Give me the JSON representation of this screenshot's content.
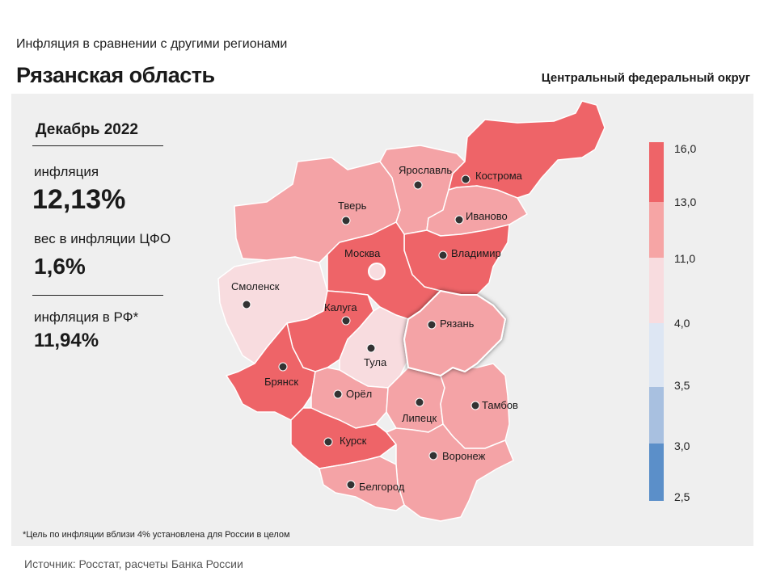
{
  "header": {
    "subtitle": "Инфляция  в сравнении  с другими  регионами",
    "region": "Рязанская область",
    "district": "Центральный федеральный округ"
  },
  "stats": {
    "period": "Декабрь 2022",
    "inflation_label": "инфляция",
    "inflation_value": "12,13%",
    "weight_label": "вес в инфляции  ЦФО",
    "weight_value": "1,6%",
    "rf_label": "инфляция  в РФ*",
    "rf_value": "11,94%"
  },
  "legend": {
    "ticks": [
      "16,0",
      "13,0",
      "11,0",
      "4,0",
      "3,5",
      "3,0",
      "2,5"
    ],
    "colors": [
      "#ee6468",
      "#f6a5a5",
      "#f8dcdf",
      "#dde6f3",
      "#a8c0e0",
      "#5b8fc9"
    ]
  },
  "map": {
    "highlighted_region": "Рязань",
    "regions": [
      {
        "name": "Смоленск",
        "fill": "#f8dcdf"
      },
      {
        "name": "Тверь",
        "fill": "#f4a3a6"
      },
      {
        "name": "Ярославль",
        "fill": "#f4a3a6"
      },
      {
        "name": "Кострома",
        "fill": "#ee6468"
      },
      {
        "name": "Иваново",
        "fill": "#f4a3a6"
      },
      {
        "name": "Владимир",
        "fill": "#ee6468"
      },
      {
        "name": "Москва",
        "fill": "#ee6468"
      },
      {
        "name": "Калуга",
        "fill": "#ee6468"
      },
      {
        "name": "Тула",
        "fill": "#f8dcdf"
      },
      {
        "name": "Рязань",
        "fill": "#f4a3a6"
      },
      {
        "name": "Брянск",
        "fill": "#ee6468"
      },
      {
        "name": "Орёл",
        "fill": "#f4a3a6"
      },
      {
        "name": "Липецк",
        "fill": "#f4a3a6"
      },
      {
        "name": "Тамбов",
        "fill": "#f4a3a6"
      },
      {
        "name": "Курск",
        "fill": "#ee6468"
      },
      {
        "name": "Воронеж",
        "fill": "#f4a3a6"
      },
      {
        "name": "Белгород",
        "fill": "#f4a3a6"
      }
    ]
  },
  "footnote": "*Цель по инфляции вблизи 4% установлена для России в целом",
  "source": "Источник: Росстат, расчеты Банка России"
}
